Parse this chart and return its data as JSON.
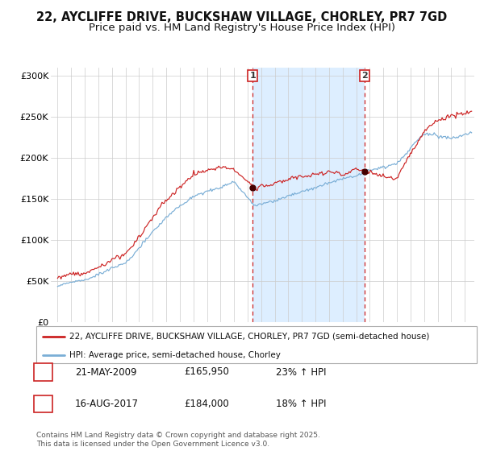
{
  "title": "22, AYCLIFFE DRIVE, BUCKSHAW VILLAGE, CHORLEY, PR7 7GD",
  "subtitle": "Price paid vs. HM Land Registry's House Price Index (HPI)",
  "ylabel_ticks": [
    "£0",
    "£50K",
    "£100K",
    "£150K",
    "£200K",
    "£250K",
    "£300K"
  ],
  "ytick_values": [
    0,
    50000,
    100000,
    150000,
    200000,
    250000,
    300000
  ],
  "ylim": [
    0,
    310000
  ],
  "xlim_start": 1994.5,
  "xlim_end": 2025.7,
  "red_line_color": "#cc2222",
  "blue_line_color": "#7aaed6",
  "shade_color": "#ddeeff",
  "ann1_x": 2009.38,
  "ann2_x": 2017.62,
  "legend_red": "22, AYCLIFFE DRIVE, BUCKSHAW VILLAGE, CHORLEY, PR7 7GD (semi-detached house)",
  "legend_blue": "HPI: Average price, semi-detached house, Chorley",
  "footnote": "Contains HM Land Registry data © Crown copyright and database right 2025.\nThis data is licensed under the Open Government Licence v3.0.",
  "table_rows": [
    {
      "num": "1",
      "date": "21-MAY-2009",
      "price": "£165,950",
      "hpi": "23% ↑ HPI"
    },
    {
      "num": "2",
      "date": "16-AUG-2017",
      "price": "£184,000",
      "hpi": "18% ↑ HPI"
    }
  ],
  "background_color": "#ffffff",
  "grid_color": "#cccccc",
  "title_fontsize": 10.5,
  "subtitle_fontsize": 9.5
}
